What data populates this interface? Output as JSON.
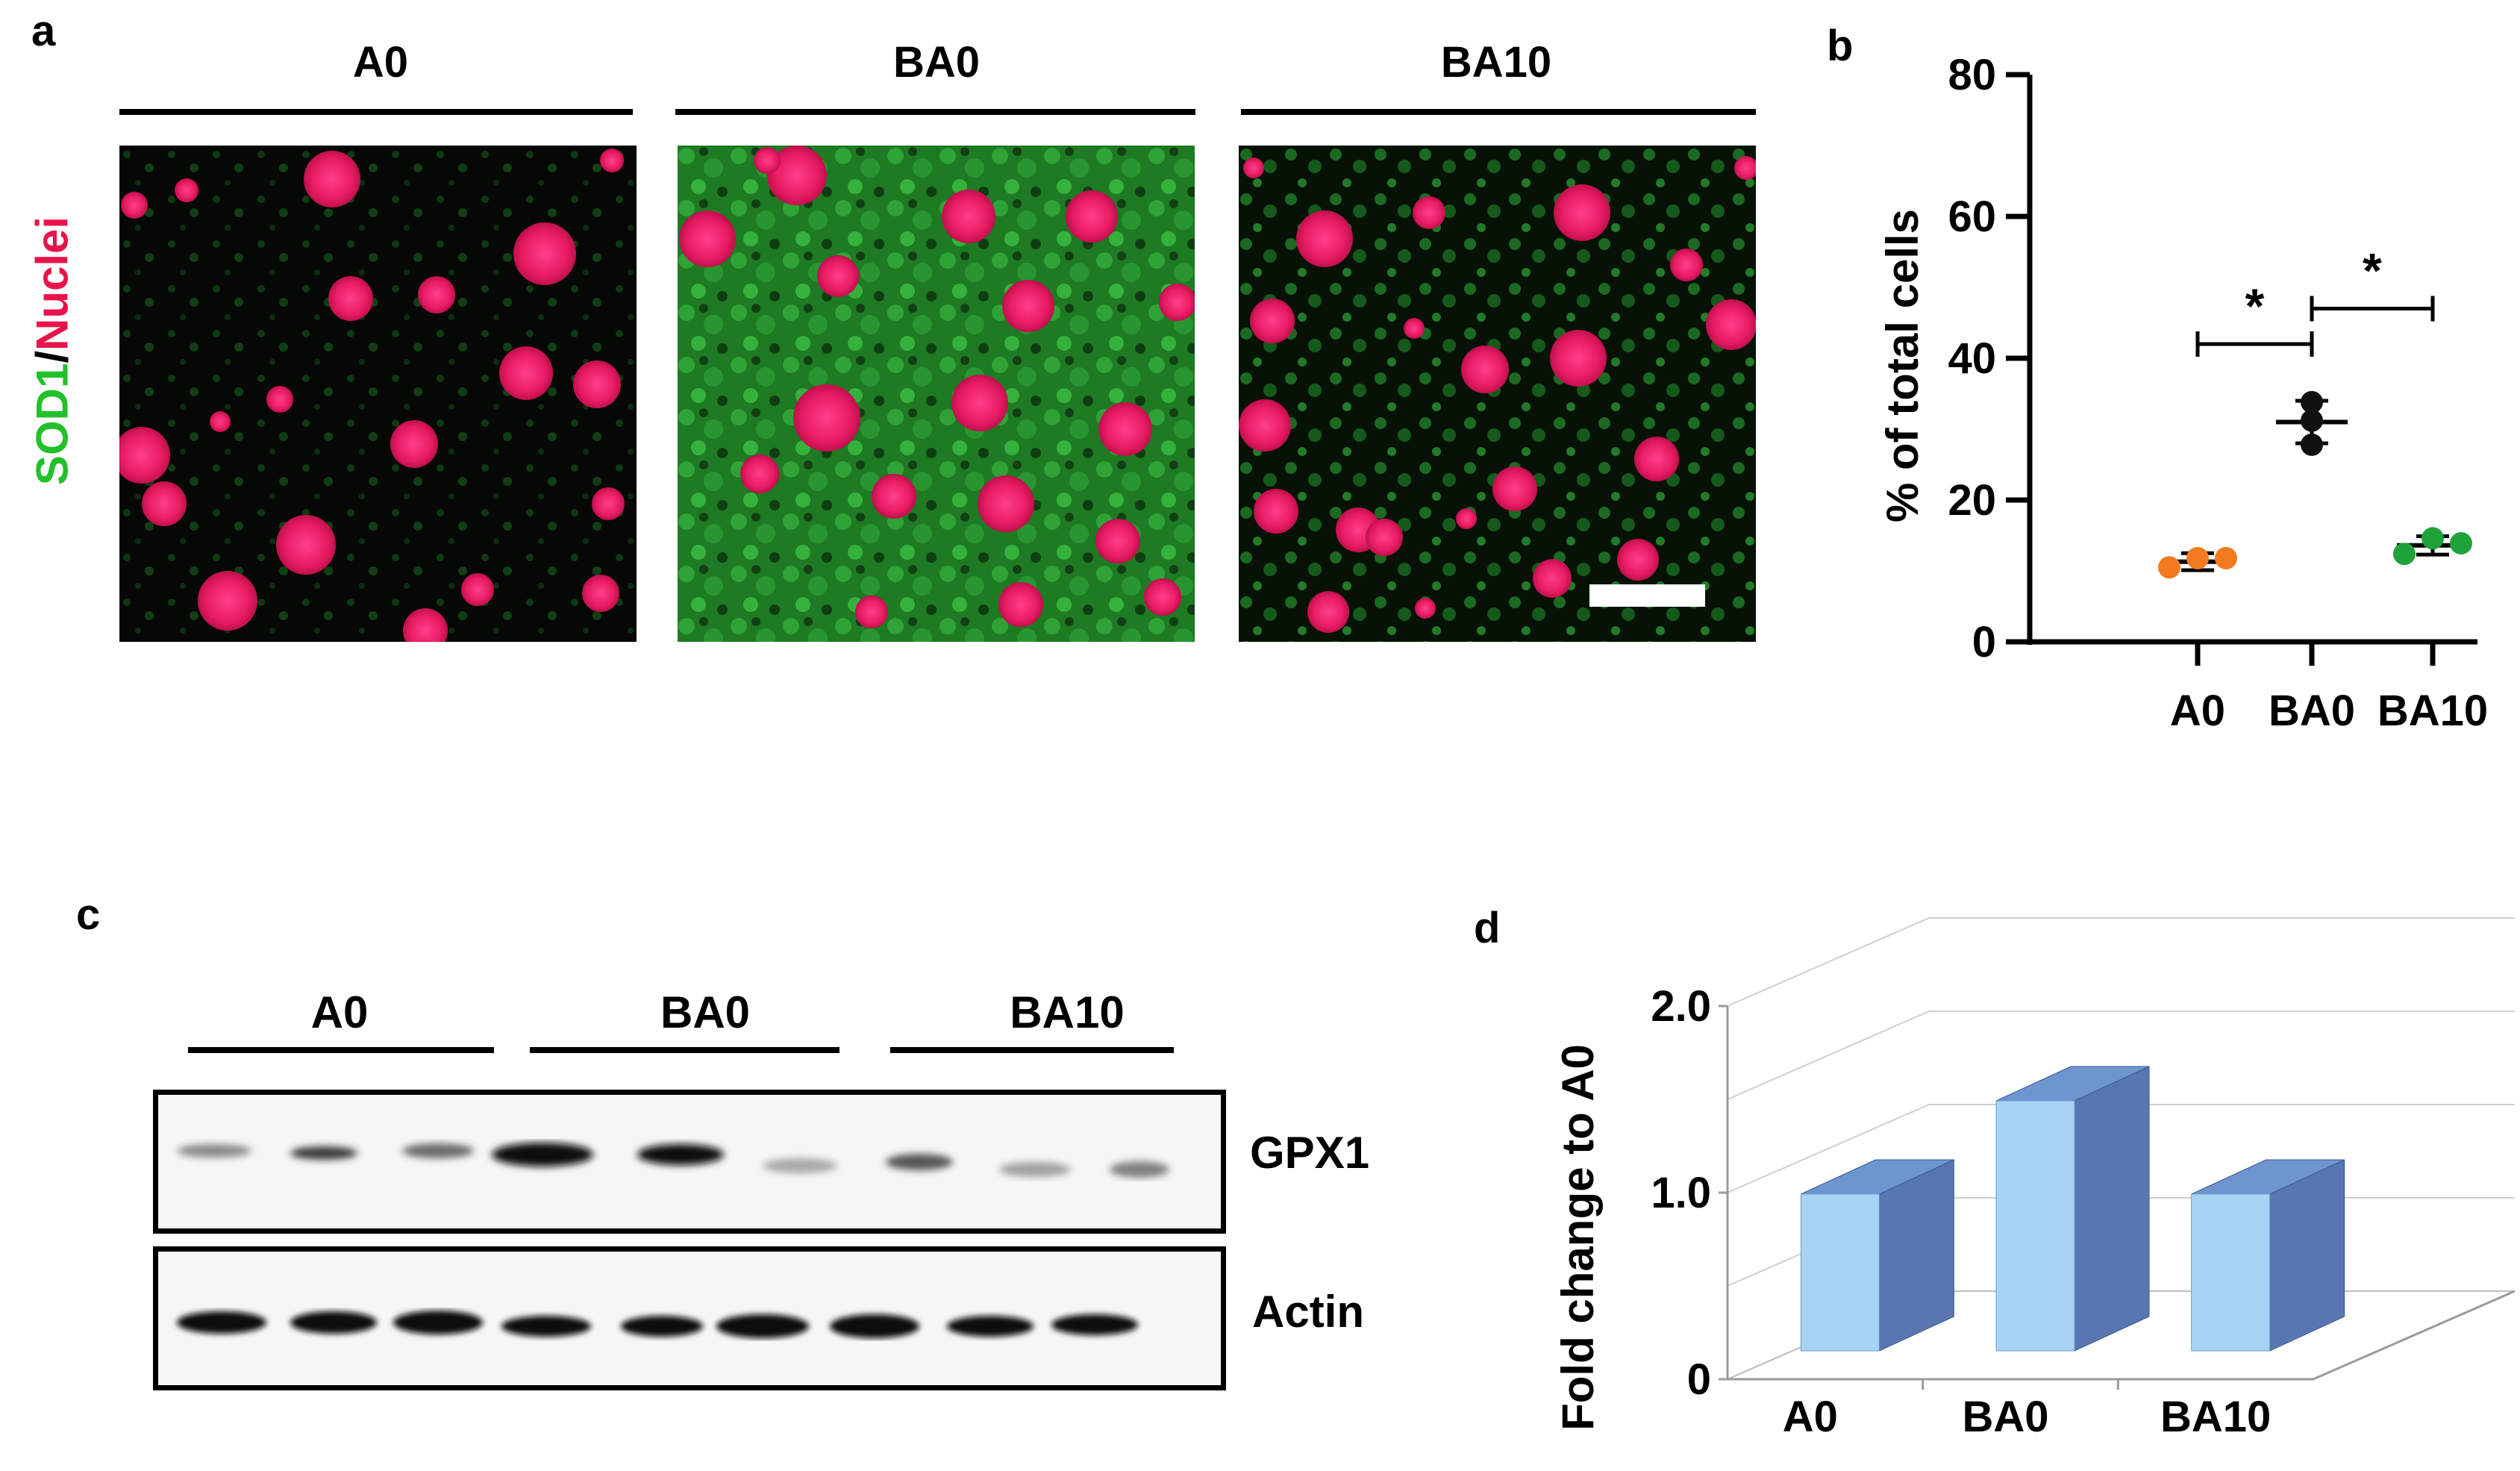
{
  "panel_a": {
    "label": "a",
    "groups": [
      "A0",
      "BA0",
      "BA10"
    ],
    "ylabel_green": "SOD1",
    "ylabel_slash": "/",
    "ylabel_red": "Nuclei",
    "colors": {
      "green": "#22c02a",
      "red": "#e8134a",
      "nuclei": "#ea1f6a"
    }
  },
  "panel_b": {
    "label": "b"
  },
  "panel_c": {
    "label": "c",
    "groups": [
      "A0",
      "BA0",
      "BA10"
    ],
    "blots": [
      "GPX1",
      "Actin"
    ]
  },
  "panel_d": {
    "label": "d"
  },
  "chart_data": [
    {
      "panel": "b",
      "type": "scatter",
      "categories": [
        "A0",
        "BA0",
        "BA10"
      ],
      "ylabel": "% of total cells",
      "ylim": [
        0,
        80
      ],
      "yticks": [
        0,
        20,
        40,
        60,
        80
      ],
      "series": [
        {
          "category": "A0",
          "color": "#f47a20",
          "values": [
            10.5,
            11.8,
            11.8
          ],
          "mean": 11.3,
          "err": 1.2
        },
        {
          "category": "BA0",
          "color": "#111111",
          "values": [
            27.8,
            31.2,
            33.8
          ],
          "mean": 31.0,
          "err": 3.0
        },
        {
          "category": "BA10",
          "color": "#1fa23a",
          "values": [
            12.4,
            14.6,
            13.9
          ],
          "mean": 13.6,
          "err": 1.3
        }
      ],
      "significance": [
        {
          "from": "A0",
          "to": "BA0",
          "text": "*"
        },
        {
          "from": "BA0",
          "to": "BA10",
          "text": "*"
        }
      ]
    },
    {
      "panel": "d",
      "type": "bar",
      "categories": [
        "A0",
        "BA0",
        "BA10"
      ],
      "values": [
        1.0,
        1.5,
        1.0
      ],
      "ylabel": "Fold change to A0",
      "ylim": [
        0,
        2.0
      ],
      "ytick_labels": [
        "0",
        "1.0",
        "2.0"
      ],
      "colors": {
        "front": "#a9d3f4",
        "side": "#5877b0",
        "top": "#6d95cf"
      }
    }
  ]
}
